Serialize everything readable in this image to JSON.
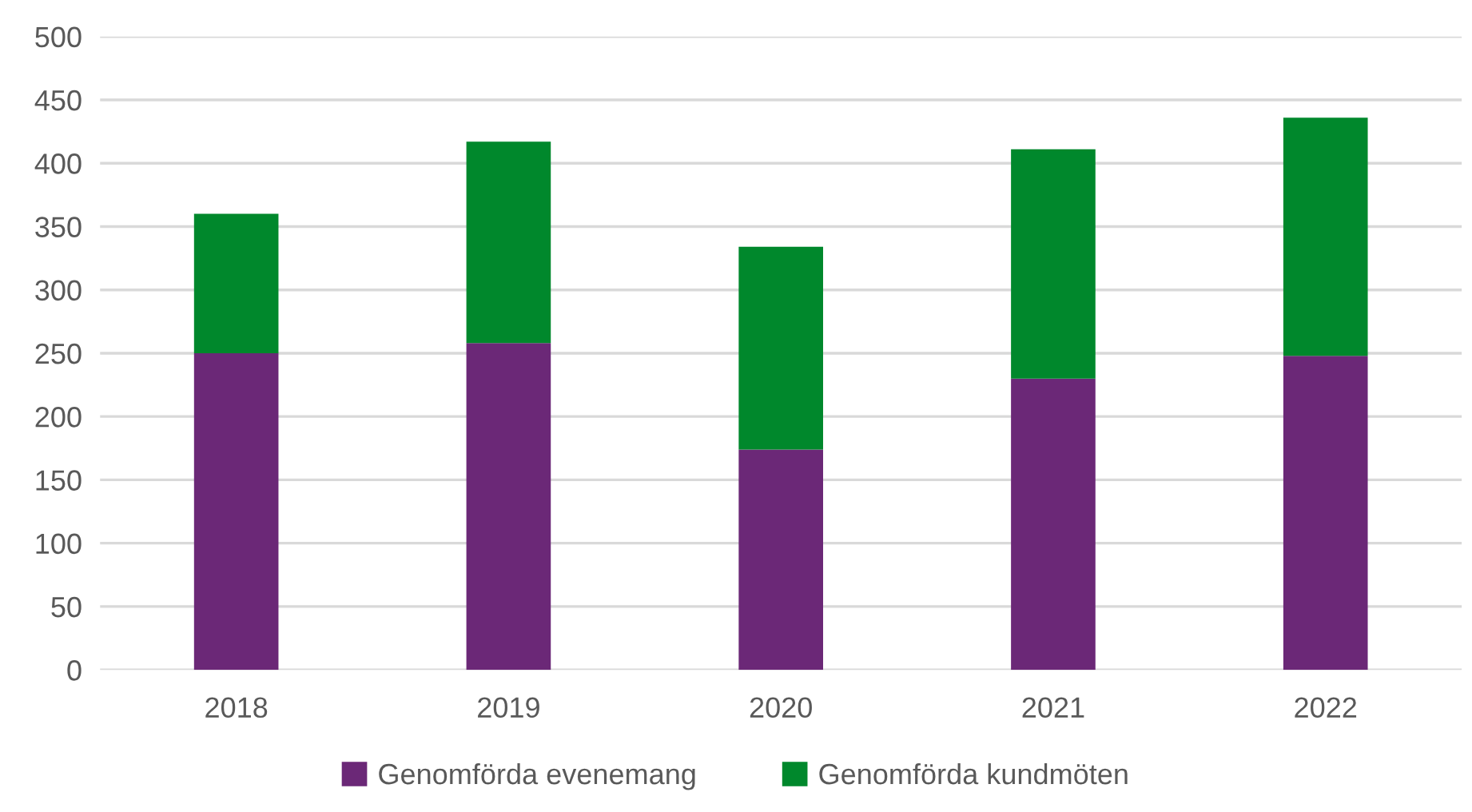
{
  "chart_data": {
    "type": "bar",
    "stacked": true,
    "categories": [
      "2018",
      "2019",
      "2020",
      "2021",
      "2022"
    ],
    "series": [
      {
        "name": "Genomförda evenemang",
        "color": "#6b2877",
        "values": [
          250,
          258,
          174,
          230,
          248
        ]
      },
      {
        "name": "Genomförda kundmöten",
        "color": "#00882c",
        "values": [
          110,
          159,
          160,
          181,
          188
        ]
      }
    ],
    "ylim": [
      0,
      500
    ],
    "yticks": [
      0,
      50,
      100,
      150,
      200,
      250,
      300,
      350,
      400,
      450,
      500
    ],
    "grid": "y",
    "legend": "bottom"
  }
}
